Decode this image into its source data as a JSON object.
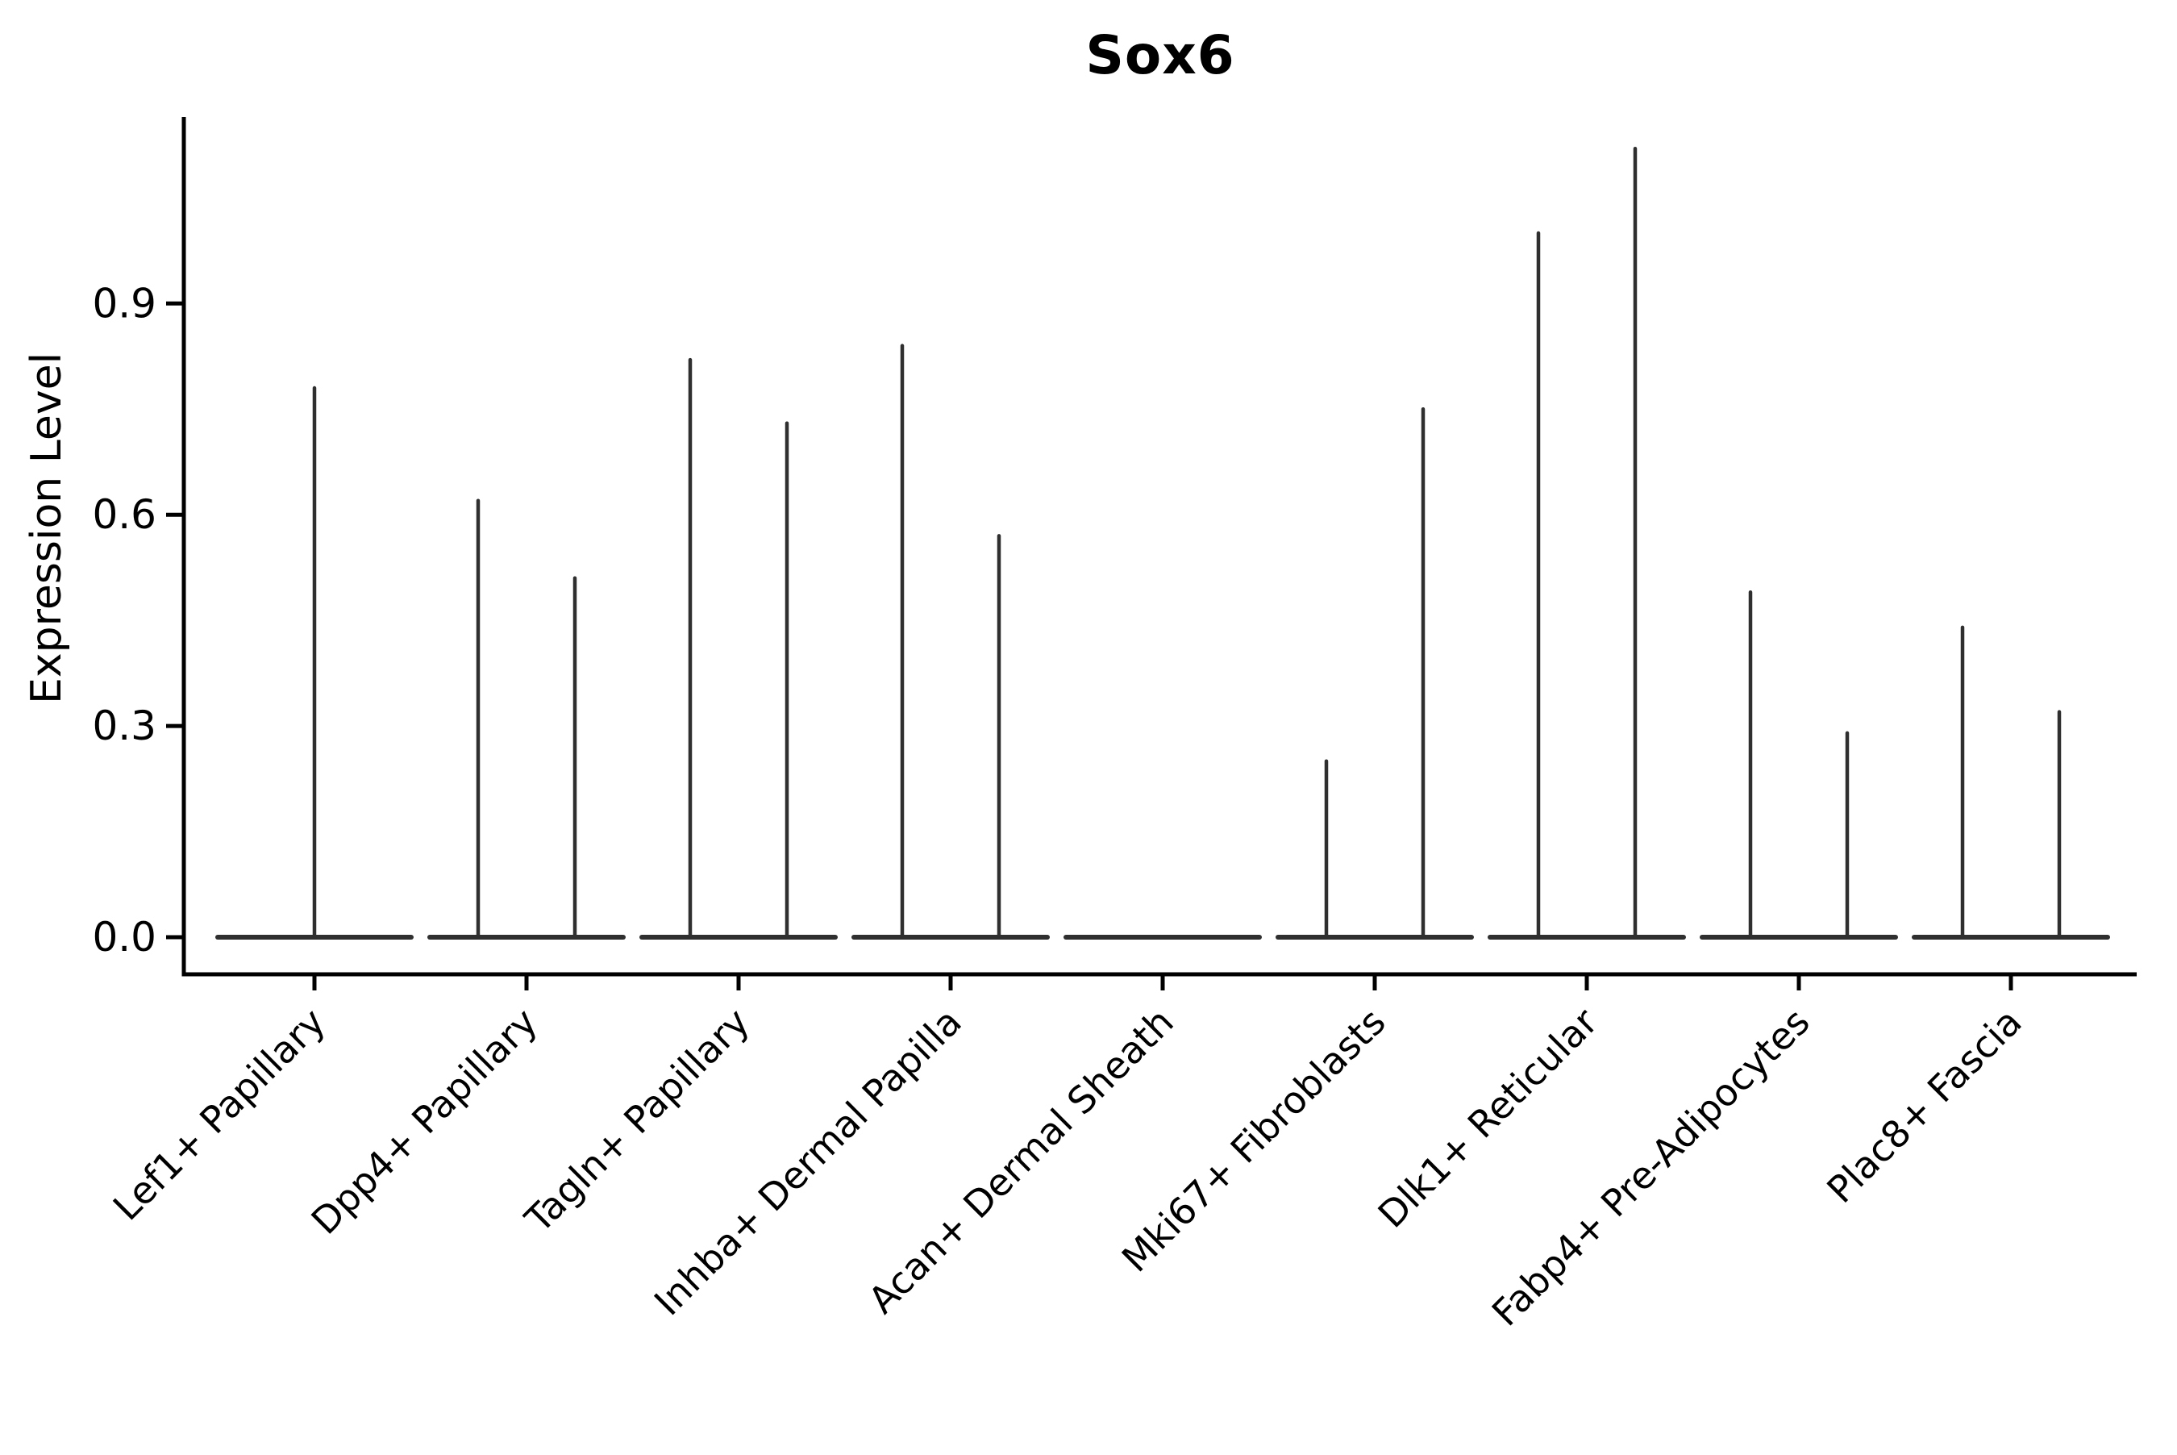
{
  "title": "Sox6",
  "y_axis": {
    "label": "Expression Level",
    "tick_labels": [
      "0.0",
      "0.3",
      "0.6",
      "0.9"
    ]
  },
  "x_axis": {
    "categories": [
      "Lef1+ Papillary",
      "Dpp4+ Papillary",
      "Tagln+ Papillary",
      "Inhba+ Dermal Papilla",
      "Acan+ Dermal Sheath",
      "Mki67+ Fibroblasts",
      "Dlk1+ Reticular",
      "Fabp4+ Pre-Adipocytes",
      "Plac8+ Fascia"
    ]
  },
  "chart_data": {
    "type": "violin",
    "title": "Sox6",
    "xlabel": "",
    "ylabel": "Expression Level",
    "ylim": [
      -0.055,
      1.165
    ],
    "yticks": [
      0.0,
      0.3,
      0.6,
      0.9
    ],
    "ytick_labels": [
      "0.0",
      "0.3",
      "0.6",
      "0.9"
    ],
    "categories": [
      "Lef1+ Papillary",
      "Dpp4+ Papillary",
      "Tagln+ Papillary",
      "Inhba+ Dermal Papilla",
      "Acan+ Dermal Sheath",
      "Mki67+ Fibroblasts",
      "Dlk1+ Reticular",
      "Fabp4+ Pre-Adipocytes",
      "Plac8+ Fascia"
    ],
    "baseline_value": 0.0,
    "violins": [
      {
        "category": "Lef1+ Papillary",
        "spikes": [
          {
            "group": "center",
            "max": 0.78
          }
        ]
      },
      {
        "category": "Dpp4+ Papillary",
        "spikes": [
          {
            "group": "left",
            "max": 0.62
          },
          {
            "group": "right",
            "max": 0.51
          }
        ]
      },
      {
        "category": "Tagln+ Papillary",
        "spikes": [
          {
            "group": "left",
            "max": 0.82
          },
          {
            "group": "right",
            "max": 0.73
          }
        ]
      },
      {
        "category": "Inhba+ Dermal Papilla",
        "spikes": [
          {
            "group": "left",
            "max": 0.84
          },
          {
            "group": "right",
            "max": 0.57
          }
        ]
      },
      {
        "category": "Acan+ Dermal Sheath",
        "spikes": []
      },
      {
        "category": "Mki67+ Fibroblasts",
        "spikes": [
          {
            "group": "left",
            "max": 0.25
          },
          {
            "group": "right",
            "max": 0.75
          }
        ]
      },
      {
        "category": "Dlk1+ Reticular",
        "spikes": [
          {
            "group": "left",
            "max": 1.0
          },
          {
            "group": "right",
            "max": 1.12
          }
        ]
      },
      {
        "category": "Fabp4+ Pre-Adipocytes",
        "spikes": [
          {
            "group": "left",
            "max": 0.49
          },
          {
            "group": "right",
            "max": 0.29
          }
        ]
      },
      {
        "category": "Plac8+ Fascia",
        "spikes": [
          {
            "group": "left",
            "max": 0.44
          },
          {
            "group": "right",
            "max": 0.32
          }
        ]
      }
    ],
    "layout_hints": {
      "grid": false,
      "legend": false,
      "x_tick_rotation_deg": 45,
      "spines": [
        "left",
        "bottom"
      ]
    }
  },
  "colors": {
    "background": "#ffffff",
    "axis": "#000000",
    "text": "#000000",
    "violin_stroke": "#2f2f2f"
  }
}
